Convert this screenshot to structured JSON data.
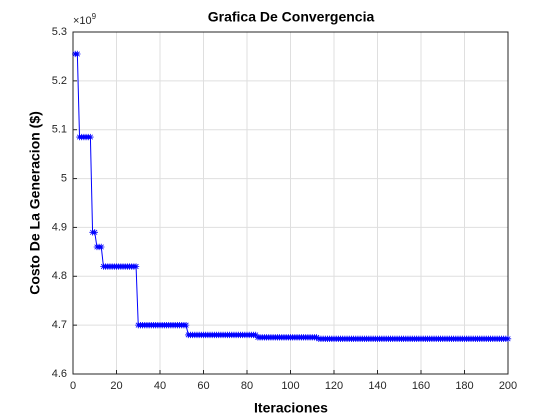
{
  "chart_data": {
    "type": "line",
    "title": "Grafica De Convergencia",
    "x_label": "Iteraciones",
    "y_label": "Costo De La Generacion ($)",
    "y_multiplier": {
      "base": "×10",
      "exponent": "9"
    },
    "x": [
      1,
      2,
      3,
      4,
      5,
      6,
      7,
      8,
      9,
      10,
      11,
      12,
      13,
      14,
      15,
      16,
      17,
      18,
      19,
      20,
      21,
      22,
      23,
      24,
      25,
      26,
      27,
      28,
      29,
      30,
      31,
      32,
      33,
      34,
      35,
      36,
      37,
      38,
      39,
      40,
      41,
      42,
      43,
      44,
      45,
      46,
      47,
      48,
      49,
      50,
      51,
      52,
      53,
      54,
      55,
      56,
      57,
      58,
      59,
      60,
      61,
      62,
      63,
      64,
      65,
      66,
      67,
      68,
      69,
      70,
      71,
      72,
      73,
      74,
      75,
      76,
      77,
      78,
      79,
      80,
      81,
      82,
      83,
      84,
      85,
      86,
      87,
      88,
      89,
      90,
      91,
      92,
      93,
      94,
      95,
      96,
      97,
      98,
      99,
      100,
      101,
      102,
      103,
      104,
      105,
      106,
      107,
      108,
      109,
      110,
      111,
      112,
      113,
      114,
      115,
      116,
      117,
      118,
      119,
      120,
      121,
      122,
      123,
      124,
      125,
      126,
      127,
      128,
      129,
      130,
      131,
      132,
      133,
      134,
      135,
      136,
      137,
      138,
      139,
      140,
      141,
      142,
      143,
      144,
      145,
      146,
      147,
      148,
      149,
      150,
      151,
      152,
      153,
      154,
      155,
      156,
      157,
      158,
      159,
      160,
      161,
      162,
      163,
      164,
      165,
      166,
      167,
      168,
      169,
      170,
      171,
      172,
      173,
      174,
      175,
      176,
      177,
      178,
      179,
      180,
      181,
      182,
      183,
      184,
      185,
      186,
      187,
      188,
      189,
      190,
      191,
      192,
      193,
      194,
      195,
      196,
      197,
      198,
      199,
      200
    ],
    "series": [
      {
        "color": "#0000ff",
        "marker": "*",
        "values": [
          5.255,
          5.255,
          5.085,
          5.085,
          5.085,
          5.085,
          5.085,
          5.085,
          4.89,
          4.89,
          4.86,
          4.86,
          4.86,
          4.82,
          4.82,
          4.82,
          4.82,
          4.82,
          4.82,
          4.82,
          4.82,
          4.82,
          4.82,
          4.82,
          4.82,
          4.82,
          4.82,
          4.82,
          4.82,
          4.7,
          4.7,
          4.7,
          4.7,
          4.7,
          4.7,
          4.7,
          4.7,
          4.7,
          4.7,
          4.7,
          4.7,
          4.7,
          4.7,
          4.7,
          4.7,
          4.7,
          4.7,
          4.7,
          4.7,
          4.7,
          4.7,
          4.7,
          4.68,
          4.68,
          4.68,
          4.68,
          4.68,
          4.68,
          4.68,
          4.68,
          4.68,
          4.68,
          4.68,
          4.68,
          4.68,
          4.68,
          4.68,
          4.68,
          4.68,
          4.68,
          4.68,
          4.68,
          4.68,
          4.68,
          4.68,
          4.68,
          4.68,
          4.68,
          4.68,
          4.68,
          4.68,
          4.68,
          4.68,
          4.68,
          4.675,
          4.675,
          4.675,
          4.675,
          4.675,
          4.675,
          4.675,
          4.675,
          4.675,
          4.675,
          4.675,
          4.675,
          4.675,
          4.675,
          4.675,
          4.675,
          4.675,
          4.675,
          4.675,
          4.675,
          4.675,
          4.675,
          4.675,
          4.675,
          4.675,
          4.675,
          4.675,
          4.675,
          4.672,
          4.672,
          4.672,
          4.672,
          4.672,
          4.672,
          4.672,
          4.672,
          4.672,
          4.672,
          4.672,
          4.672,
          4.672,
          4.672,
          4.672,
          4.672,
          4.672,
          4.672,
          4.672,
          4.672,
          4.672,
          4.672,
          4.672,
          4.672,
          4.672,
          4.672,
          4.672,
          4.672,
          4.672,
          4.672,
          4.672,
          4.672,
          4.672,
          4.672,
          4.672,
          4.672,
          4.672,
          4.672,
          4.672,
          4.672,
          4.672,
          4.672,
          4.672,
          4.672,
          4.672,
          4.672,
          4.672,
          4.672,
          4.672,
          4.672,
          4.672,
          4.672,
          4.672,
          4.672,
          4.672,
          4.672,
          4.672,
          4.672,
          4.672,
          4.672,
          4.672,
          4.672,
          4.672,
          4.672,
          4.672,
          4.672,
          4.672,
          4.672,
          4.672,
          4.672,
          4.672,
          4.672,
          4.672,
          4.672,
          4.672,
          4.672,
          4.672,
          4.672,
          4.672,
          4.672,
          4.672,
          4.672,
          4.672,
          4.672,
          4.672,
          4.672,
          4.672,
          4.672
        ]
      }
    ],
    "xlim": [
      0,
      200
    ],
    "xticks": [
      0,
      20,
      40,
      60,
      80,
      100,
      120,
      140,
      160,
      180,
      200
    ],
    "ylim": [
      4.6,
      5.3
    ],
    "yticks": [
      4.6,
      4.7,
      4.8,
      4.9,
      5,
      5.1,
      5.2,
      5.3
    ],
    "grid": true
  }
}
